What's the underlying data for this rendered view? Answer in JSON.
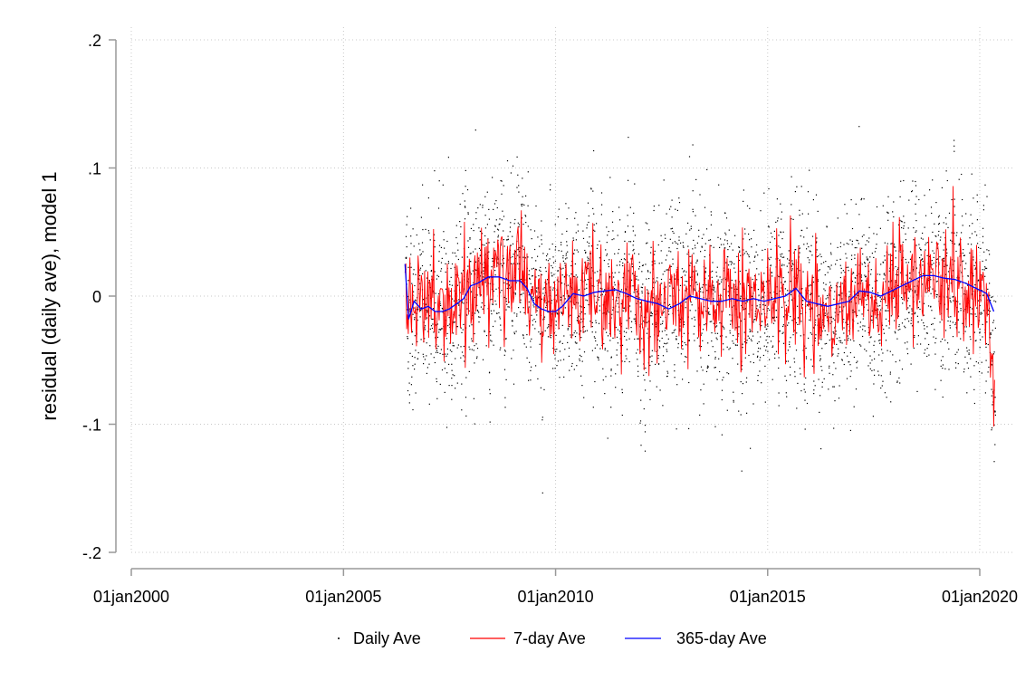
{
  "chart_data": {
    "type": "line",
    "title": "",
    "xlabel": "",
    "ylabel": "residual (daily ave), model 1",
    "xlim": [
      "2000-01-01",
      "2020-05-15"
    ],
    "ylim": [
      -0.2,
      0.2
    ],
    "x_ticks": [
      "01jan2000",
      "01jan2005",
      "01jan2010",
      "01jan2015",
      "01jan2020"
    ],
    "y_ticks": [
      ".2",
      ".1",
      "0",
      "-.1",
      "-.2"
    ],
    "grid": true,
    "legend_position": "bottom",
    "series": [
      {
        "name": "Daily Ave",
        "style": "scatter",
        "color": "#000000"
      },
      {
        "name": "7-day Ave",
        "style": "line",
        "color": "#ff0000"
      },
      {
        "name": "365-day Ave",
        "style": "line",
        "color": "#0000ff",
        "x": [
          "2006-06-15",
          "2006-07-15",
          "2006-09-01",
          "2006-11-01",
          "2007-01-01",
          "2007-03-01",
          "2007-05-01",
          "2007-07-01",
          "2007-09-01",
          "2007-11-01",
          "2008-01-01",
          "2008-03-01",
          "2008-06-01",
          "2008-09-01",
          "2008-12-01",
          "2009-03-01",
          "2009-05-01",
          "2009-07-01",
          "2009-09-01",
          "2009-11-01",
          "2010-01-01",
          "2010-03-01",
          "2010-06-01",
          "2010-09-01",
          "2010-12-01",
          "2011-03-01",
          "2011-06-01",
          "2011-09-01",
          "2011-12-01",
          "2012-03-01",
          "2012-06-01",
          "2012-09-01",
          "2012-12-01",
          "2013-03-01",
          "2013-06-01",
          "2013-09-01",
          "2013-12-01",
          "2014-03-01",
          "2014-06-01",
          "2014-09-01",
          "2014-12-01",
          "2015-03-01",
          "2015-06-01",
          "2015-09-01",
          "2015-12-01",
          "2016-03-01",
          "2016-06-01",
          "2016-09-01",
          "2016-12-01",
          "2017-03-01",
          "2017-06-01",
          "2017-09-01",
          "2017-12-01",
          "2018-03-01",
          "2018-06-01",
          "2018-09-01",
          "2018-12-01",
          "2019-03-01",
          "2019-06-01",
          "2019-09-01",
          "2019-12-01",
          "2020-03-01",
          "2020-05-01"
        ],
        "values": [
          0.025,
          -0.018,
          -0.004,
          -0.01,
          -0.008,
          -0.012,
          -0.012,
          -0.01,
          -0.006,
          -0.002,
          0.008,
          0.01,
          0.015,
          0.015,
          0.012,
          0.012,
          0.006,
          -0.006,
          -0.01,
          -0.012,
          -0.012,
          -0.008,
          0.002,
          0.0,
          0.003,
          0.004,
          0.005,
          0.002,
          -0.002,
          -0.004,
          -0.006,
          -0.01,
          -0.006,
          0.0,
          -0.002,
          -0.004,
          -0.004,
          -0.002,
          -0.004,
          -0.002,
          -0.004,
          -0.002,
          0.0,
          0.006,
          -0.004,
          -0.006,
          -0.008,
          -0.006,
          -0.004,
          0.004,
          0.003,
          0.0,
          0.004,
          0.008,
          0.012,
          0.016,
          0.016,
          0.014,
          0.013,
          0.01,
          0.006,
          0.002,
          -0.012
        ]
      }
    ]
  }
}
